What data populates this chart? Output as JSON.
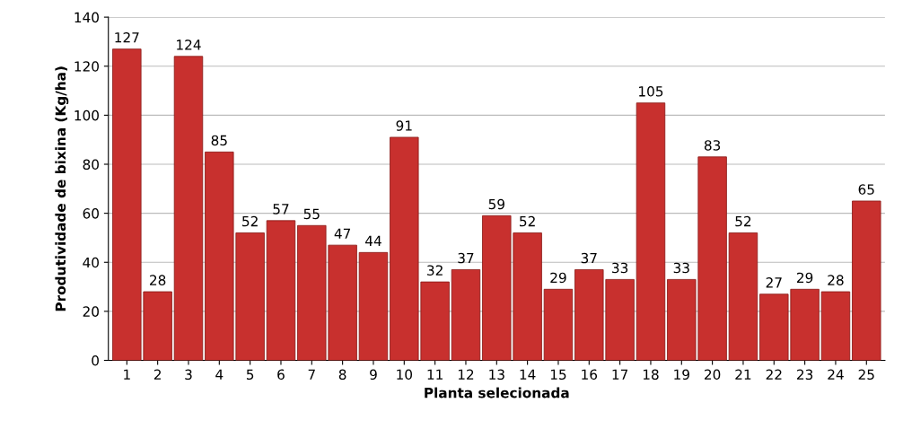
{
  "chart_data": {
    "type": "bar",
    "xlabel": "Planta selecionada",
    "ylabel": "Produtividade de bixina (Kg/ha)",
    "categories": [
      "1",
      "2",
      "3",
      "4",
      "5",
      "6",
      "7",
      "8",
      "9",
      "10",
      "11",
      "12",
      "13",
      "14",
      "15",
      "16",
      "17",
      "18",
      "19",
      "20",
      "21",
      "22",
      "23",
      "24",
      "25"
    ],
    "values": [
      127,
      28,
      124,
      85,
      52,
      57,
      55,
      47,
      44,
      91,
      32,
      37,
      59,
      52,
      29,
      37,
      33,
      105,
      33,
      83,
      52,
      27,
      29,
      28,
      65
    ],
    "color": "#c8302e",
    "ylim": [
      0,
      140
    ],
    "yticks": [
      0,
      20,
      40,
      60,
      80,
      100,
      120,
      140
    ],
    "grid": "y",
    "data_labels": true
  }
}
